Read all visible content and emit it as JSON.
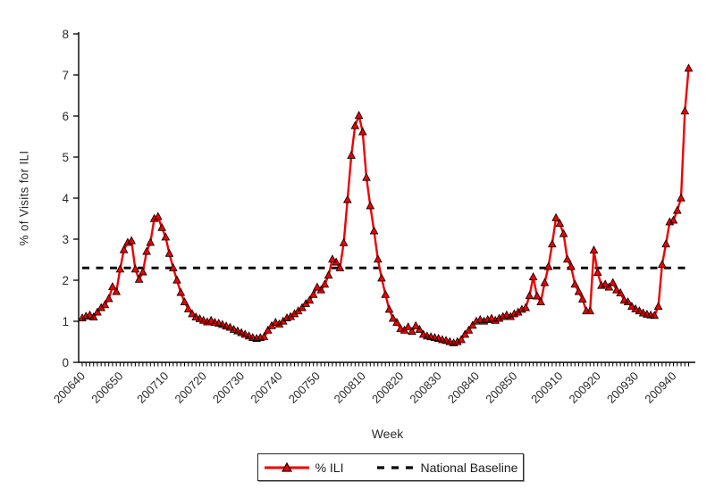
{
  "chart": {
    "background": "#ffffff",
    "axis_color": "#000000",
    "text_color": "#2b2b2b",
    "series_color": "#f00000",
    "marker_edge_color": "#1a0000",
    "baseline_color": "#000000"
  },
  "chart_data": {
    "type": "line",
    "title": "",
    "xlabel": "Week",
    "ylabel": "% of Visits for ILI",
    "ylim": [
      0,
      8
    ],
    "y_ticks": [
      0,
      1,
      2,
      3,
      4,
      5,
      6,
      7,
      8
    ],
    "x_tick_labels": [
      "200640",
      "200650",
      "200710",
      "200720",
      "200730",
      "200740",
      "200750",
      "200810",
      "200820",
      "200830",
      "200840",
      "200850",
      "200910",
      "200920",
      "200930",
      "200940"
    ],
    "grid": false,
    "legend_position": "bottom-center",
    "baseline": {
      "label": "National Baseline",
      "value": 2.3,
      "style": "dashed"
    },
    "series": [
      {
        "name": "% ILI",
        "marker": "triangle",
        "color": "#f00000",
        "weeks": [
          "200640",
          "200641",
          "200642",
          "200643",
          "200644",
          "200645",
          "200646",
          "200647",
          "200648",
          "200649",
          "200650",
          "200651",
          "200652",
          "200701",
          "200702",
          "200703",
          "200704",
          "200705",
          "200706",
          "200707",
          "200708",
          "200709",
          "200710",
          "200711",
          "200712",
          "200713",
          "200714",
          "200715",
          "200716",
          "200717",
          "200718",
          "200719",
          "200720",
          "200721",
          "200722",
          "200723",
          "200724",
          "200725",
          "200726",
          "200727",
          "200728",
          "200729",
          "200730",
          "200731",
          "200732",
          "200733",
          "200734",
          "200735",
          "200736",
          "200737",
          "200738",
          "200739",
          "200740",
          "200741",
          "200742",
          "200743",
          "200744",
          "200745",
          "200746",
          "200747",
          "200748",
          "200749",
          "200750",
          "200751",
          "200752",
          "200801",
          "200802",
          "200803",
          "200804",
          "200805",
          "200806",
          "200807",
          "200808",
          "200809",
          "200810",
          "200811",
          "200812",
          "200813",
          "200814",
          "200815",
          "200816",
          "200817",
          "200818",
          "200819",
          "200820",
          "200821",
          "200822",
          "200823",
          "200824",
          "200825",
          "200826",
          "200827",
          "200828",
          "200829",
          "200830",
          "200831",
          "200832",
          "200833",
          "200834",
          "200835",
          "200836",
          "200837",
          "200838",
          "200839",
          "200840",
          "200841",
          "200842",
          "200843",
          "200844",
          "200845",
          "200846",
          "200847",
          "200848",
          "200849",
          "200850",
          "200851",
          "200852",
          "200901",
          "200902",
          "200903",
          "200904",
          "200905",
          "200906",
          "200907",
          "200908",
          "200909",
          "200910",
          "200911",
          "200912",
          "200913",
          "200914",
          "200915",
          "200916",
          "200917",
          "200918",
          "200919",
          "200920",
          "200921",
          "200922",
          "200923",
          "200924",
          "200925",
          "200926",
          "200927",
          "200928",
          "200929",
          "200930",
          "200931",
          "200932",
          "200933",
          "200934",
          "200935",
          "200936",
          "200937",
          "200938",
          "200939",
          "200940",
          "200941",
          "200942",
          "200943",
          "200944"
        ],
        "values": [
          1.08,
          1.12,
          1.15,
          1.1,
          1.22,
          1.33,
          1.4,
          1.55,
          1.84,
          1.72,
          2.27,
          2.74,
          2.92,
          2.96,
          2.27,
          2.02,
          2.2,
          2.7,
          2.92,
          3.5,
          3.55,
          3.28,
          3.05,
          2.65,
          2.3,
          2.0,
          1.7,
          1.47,
          1.3,
          1.18,
          1.1,
          1.06,
          1.02,
          0.98,
          1.02,
          0.97,
          0.95,
          0.92,
          0.88,
          0.85,
          0.8,
          0.76,
          0.72,
          0.68,
          0.64,
          0.6,
          0.58,
          0.6,
          0.62,
          0.78,
          0.89,
          0.97,
          0.93,
          1.0,
          1.08,
          1.11,
          1.18,
          1.25,
          1.33,
          1.43,
          1.51,
          1.65,
          1.83,
          1.76,
          1.9,
          2.12,
          2.51,
          2.44,
          2.3,
          2.91,
          3.96,
          5.04,
          5.76,
          6.01,
          5.61,
          4.5,
          3.81,
          3.2,
          2.51,
          2.05,
          1.65,
          1.29,
          1.07,
          0.97,
          0.82,
          0.78,
          0.86,
          0.75,
          0.89,
          0.8,
          0.68,
          0.64,
          0.62,
          0.6,
          0.58,
          0.55,
          0.53,
          0.5,
          0.47,
          0.5,
          0.55,
          0.68,
          0.78,
          0.9,
          1.0,
          1.04,
          1.0,
          1.04,
          1.07,
          1.02,
          1.07,
          1.11,
          1.15,
          1.11,
          1.18,
          1.22,
          1.29,
          1.33,
          1.62,
          2.08,
          1.61,
          1.47,
          1.94,
          2.33,
          2.88,
          3.52,
          3.38,
          3.13,
          2.51,
          2.33,
          1.9,
          1.72,
          1.54,
          1.25,
          1.25,
          2.73,
          2.19,
          1.87,
          1.9,
          1.83,
          1.94,
          1.76,
          1.69,
          1.51,
          1.47,
          1.36,
          1.3,
          1.25,
          1.2,
          1.17,
          1.15,
          1.14,
          1.36,
          2.38,
          2.88,
          3.42,
          3.46,
          3.7,
          4.0,
          6.12,
          7.16
        ]
      }
    ]
  }
}
